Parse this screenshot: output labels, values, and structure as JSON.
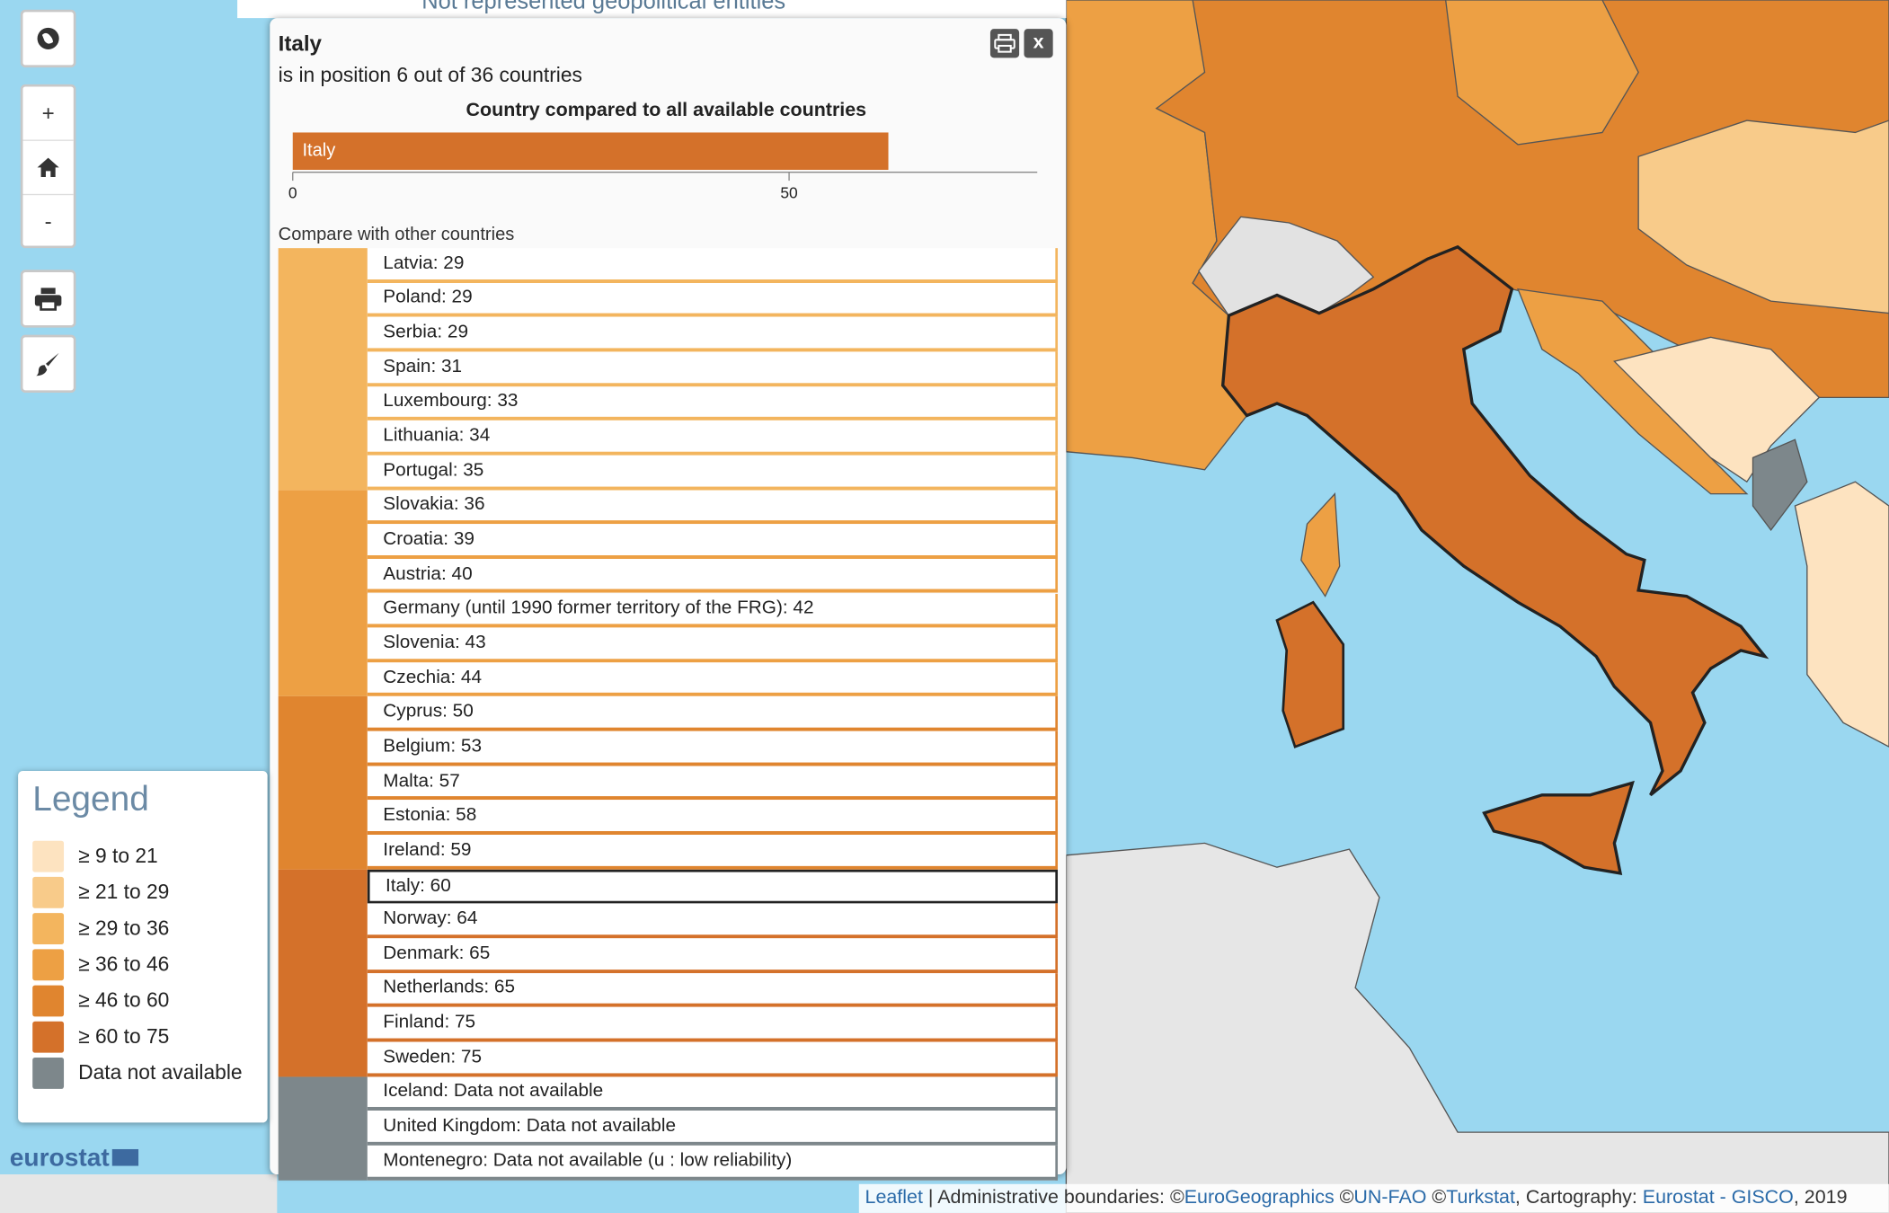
{
  "top_strip": {
    "text": "Not represented geopolitical entities"
  },
  "controls": {
    "zoom_in": "+",
    "zoom_out": "-"
  },
  "popup": {
    "title": "Italy",
    "subtitle": "is in position 6 out of 36 countries",
    "close": "x",
    "compare_title": "Compare with other countries",
    "groups": [
      {
        "color": "#f3b55e",
        "items": [
          {
            "label": "Latvia: 29"
          },
          {
            "label": "Poland: 29"
          },
          {
            "label": "Serbia: 29"
          },
          {
            "label": "Spain: 31"
          },
          {
            "label": "Luxembourg: 33"
          },
          {
            "label": "Lithuania: 34"
          },
          {
            "label": "Portugal: 35"
          }
        ]
      },
      {
        "color": "#eda044",
        "items": [
          {
            "label": "Slovakia: 36"
          },
          {
            "label": "Croatia: 39"
          },
          {
            "label": "Austria: 40"
          },
          {
            "label": "Germany (until 1990 former territory of the FRG): 42"
          },
          {
            "label": "Slovenia: 43"
          },
          {
            "label": "Czechia: 44"
          }
        ]
      },
      {
        "color": "#e0852f",
        "items": [
          {
            "label": "Cyprus: 50"
          },
          {
            "label": "Belgium: 53"
          },
          {
            "label": "Malta: 57"
          },
          {
            "label": "Estonia: 58"
          },
          {
            "label": "Ireland: 59"
          }
        ]
      },
      {
        "color": "#d4712a",
        "items": [
          {
            "label": "Italy: 60",
            "selected": true
          },
          {
            "label": "Norway: 64"
          },
          {
            "label": "Denmark: 65"
          },
          {
            "label": "Netherlands: 65"
          },
          {
            "label": "Finland: 75"
          },
          {
            "label": "Sweden: 75"
          }
        ]
      },
      {
        "color": "#7d878b",
        "items": [
          {
            "label": "Iceland: Data not available"
          },
          {
            "label": "United Kingdom: Data not available"
          },
          {
            "label": "Montenegro: Data not available (u : low reliability)"
          }
        ]
      }
    ]
  },
  "chart_data": {
    "type": "bar",
    "orientation": "horizontal",
    "title": "Country compared to all available countries",
    "categories": [
      "Italy"
    ],
    "values": [
      60
    ],
    "color": "#d4712a",
    "xlim": [
      0,
      75
    ],
    "xticks": [
      0,
      50
    ]
  },
  "legend": {
    "title": "Legend",
    "items": [
      {
        "label": "≥ 9 to 21",
        "color": "#fde3c0"
      },
      {
        "label": "≥ 21 to 29",
        "color": "#f8cb8a"
      },
      {
        "label": "≥ 29 to 36",
        "color": "#f3b55e"
      },
      {
        "label": "≥ 36 to 46",
        "color": "#eda044"
      },
      {
        "label": "≥ 46 to 60",
        "color": "#e0852f"
      },
      {
        "label": "≥ 60 to 75",
        "color": "#d4712a"
      },
      {
        "label": "Data not available",
        "color": "#7d878b"
      }
    ]
  },
  "logo": "eurostat",
  "attribution": [
    {
      "text": "Leaflet",
      "link": true
    },
    {
      "text": " | Administrative boundaries: ©"
    },
    {
      "text": "EuroGeographics",
      "link": true
    },
    {
      "text": " ©"
    },
    {
      "text": "UN-FAO",
      "link": true
    },
    {
      "text": " ©"
    },
    {
      "text": "Turkstat",
      "link": true
    },
    {
      "text": ", Cartography: "
    },
    {
      "text": "Eurostat - GISCO",
      "link": true
    },
    {
      "text": ", 2019"
    }
  ]
}
